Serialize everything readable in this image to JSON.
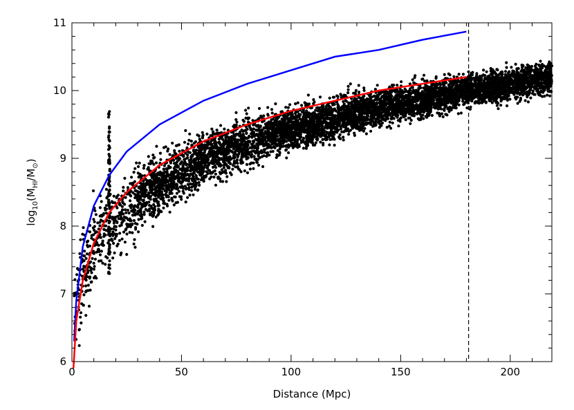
{
  "chart_data": {
    "type": "scatter",
    "title": "",
    "xlabel": "Distance (Mpc)",
    "ylabel": {
      "prefix": "log",
      "sub1": "10",
      "open": "(M",
      "sub2": "HI",
      "slash": "/M",
      "sub3": "⊙",
      "close": ")"
    },
    "xlim": [
      0,
      219
    ],
    "ylim": [
      6,
      11
    ],
    "xticks": [
      0,
      50,
      100,
      150,
      200
    ],
    "yticks": [
      6,
      7,
      8,
      9,
      10,
      11
    ],
    "grid": false,
    "colors": {
      "points": "#000000",
      "upper_curve": "#0000ff",
      "lower_curve": "#ff0000",
      "cutoff_line": "#000000"
    },
    "scatter_summary": {
      "description_of_bulk": "Dense cloud of several thousand black points rising from ~6.5 at small distance to ~10.1 near 200 Mpc",
      "bins": [
        {
          "x": [
            1,
            10
          ],
          "y_center_at_start": 6.7,
          "y_center_at_end": 7.8,
          "spread": 0.55
        },
        {
          "x": [
            10,
            30
          ],
          "y_center_at_start": 7.8,
          "y_center_at_end": 8.4,
          "spread": 0.45
        },
        {
          "x": [
            30,
            60
          ],
          "y_center_at_start": 8.4,
          "y_center_at_end": 9.0,
          "spread": 0.35
        },
        {
          "x": [
            60,
            90
          ],
          "y_center_at_start": 9.0,
          "y_center_at_end": 9.35,
          "spread": 0.3
        },
        {
          "x": [
            90,
            140
          ],
          "y_center_at_start": 9.35,
          "y_center_at_end": 9.75,
          "spread": 0.25
        },
        {
          "x": [
            140,
            181
          ],
          "y_center_at_start": 9.75,
          "y_center_at_end": 10.0,
          "spread": 0.22
        },
        {
          "x": [
            181,
            219
          ],
          "y_center_at_start": 10.0,
          "y_center_at_end": 10.2,
          "spread": 0.2
        }
      ],
      "vertical_clump": {
        "x": 17,
        "y_range": [
          7.3,
          9.7
        ]
      }
    },
    "series": [
      {
        "color": "#0000ff",
        "x": [
          1,
          2,
          5,
          10,
          17,
          25,
          40,
          60,
          80,
          100,
          120,
          140,
          160,
          180
        ],
        "y": [
          6.3,
          6.9,
          7.7,
          8.3,
          8.75,
          9.1,
          9.5,
          9.85,
          10.1,
          10.3,
          10.5,
          10.6,
          10.75,
          10.87
        ]
      },
      {
        "color": "#ff0000",
        "x": [
          0.7,
          2,
          5,
          10,
          17,
          25,
          40,
          60,
          80,
          100,
          120,
          140,
          160,
          180
        ],
        "y": [
          5.9,
          6.6,
          7.2,
          7.75,
          8.2,
          8.5,
          8.9,
          9.25,
          9.5,
          9.7,
          9.85,
          10.0,
          10.1,
          10.2
        ]
      }
    ],
    "annotations": [
      {
        "type": "vertical_dashed_line",
        "x": 181
      }
    ]
  }
}
